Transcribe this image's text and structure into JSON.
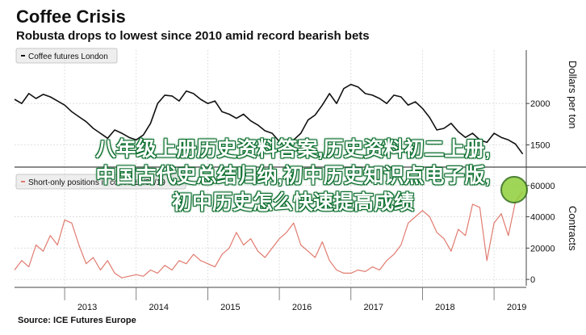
{
  "title": "Coffee Crisis",
  "subtitle": "Robusta drops to lowest since 2010 amid record bearish bets",
  "source": "Source: ICE Futures Europe",
  "overlay": {
    "line1": "八年级上册历史资料答案,历史资料初二上册,",
    "line2": "中国古代史总结归纳,初中历史知识点电子版,",
    "line3": "初中历史怎么快速提高成绩"
  },
  "colors": {
    "price_line": "#111111",
    "positions_line": "#e07b6f",
    "legend_bg": "#eeeeee",
    "overlay_text": "#ffffff",
    "overlay_outline": "#0a6d2c",
    "marker": "#8fcf3a"
  },
  "chart_data": [
    {
      "type": "line",
      "legend_label": "Coffee futures London",
      "ylabel": "Dollars per ton",
      "y_ticks": [
        1500,
        2000
      ],
      "ylim": [
        1300,
        2450
      ],
      "x_ticks": [
        "2013",
        "2014",
        "2015",
        "2016",
        "2017",
        "2018",
        "2019"
      ],
      "xlim": [
        2012.3,
        2019.45
      ],
      "series": [
        {
          "x": [
            2012.3,
            2012.4,
            2012.5,
            2012.6,
            2012.7,
            2012.8,
            2012.9,
            2013.0,
            2013.1,
            2013.2,
            2013.3,
            2013.4,
            2013.5,
            2013.6,
            2013.7,
            2013.8,
            2013.9,
            2014.0,
            2014.1,
            2014.2,
            2014.3,
            2014.4,
            2014.5,
            2014.6,
            2014.7,
            2014.8,
            2014.9,
            2015.0,
            2015.1,
            2015.2,
            2015.3,
            2015.4,
            2015.5,
            2015.6,
            2015.7,
            2015.8,
            2015.9,
            2016.0,
            2016.1,
            2016.2,
            2016.3,
            2016.4,
            2016.5,
            2016.6,
            2016.7,
            2016.8,
            2016.9,
            2017.0,
            2017.1,
            2017.2,
            2017.3,
            2017.4,
            2017.5,
            2017.6,
            2017.7,
            2017.8,
            2017.9,
            2018.0,
            2018.1,
            2018.2,
            2018.3,
            2018.4,
            2018.5,
            2018.6,
            2018.7,
            2018.8,
            2018.9,
            2019.0,
            2019.1,
            2019.2,
            2019.3,
            2019.4
          ],
          "values": [
            2050,
            2000,
            2120,
            2060,
            2110,
            2080,
            2030,
            1980,
            1900,
            1840,
            1780,
            1700,
            1640,
            1580,
            1680,
            1640,
            1590,
            1560,
            1620,
            1760,
            2000,
            2100,
            2090,
            2030,
            2150,
            2120,
            2050,
            2000,
            2030,
            1900,
            1870,
            1820,
            1870,
            1790,
            1740,
            1670,
            1640,
            1540,
            1530,
            1560,
            1640,
            1800,
            1860,
            1980,
            2120,
            2000,
            2180,
            2230,
            2200,
            2120,
            2100,
            2060,
            2000,
            2100,
            2080,
            1980,
            2020,
            1940,
            1830,
            1680,
            1700,
            1760,
            1660,
            1590,
            1640,
            1560,
            1530,
            1640,
            1590,
            1560,
            1510,
            1390
          ]
        }
      ]
    },
    {
      "type": "line",
      "legend_label": "Short-only positions in coffee 10/31/19",
      "ylabel": "Contracts",
      "y_ticks": [
        0,
        20000,
        40000,
        60000
      ],
      "ylim": [
        -2000,
        64000
      ],
      "x_ticks": [
        "2013",
        "2014",
        "2015",
        "2016",
        "2017",
        "2018",
        "2019"
      ],
      "xlim": [
        2012.3,
        2019.45
      ],
      "series": [
        {
          "x": [
            2012.3,
            2012.4,
            2012.5,
            2012.6,
            2012.7,
            2012.8,
            2012.9,
            2013.0,
            2013.1,
            2013.2,
            2013.3,
            2013.4,
            2013.5,
            2013.6,
            2013.7,
            2013.8,
            2013.9,
            2014.0,
            2014.1,
            2014.2,
            2014.3,
            2014.4,
            2014.5,
            2014.6,
            2014.7,
            2014.8,
            2014.9,
            2015.0,
            2015.1,
            2015.2,
            2015.3,
            2015.4,
            2015.5,
            2015.6,
            2015.7,
            2015.8,
            2015.9,
            2016.0,
            2016.1,
            2016.2,
            2016.3,
            2016.4,
            2016.5,
            2016.6,
            2016.7,
            2016.8,
            2016.9,
            2017.0,
            2017.1,
            2017.2,
            2017.3,
            2017.4,
            2017.5,
            2017.6,
            2017.7,
            2017.8,
            2017.9,
            2018.0,
            2018.1,
            2018.2,
            2018.3,
            2018.4,
            2018.5,
            2018.6,
            2018.7,
            2018.8,
            2018.9,
            2019.0,
            2019.1,
            2019.2,
            2019.3,
            2019.4
          ],
          "values": [
            6000,
            12000,
            8000,
            22000,
            18000,
            28000,
            22000,
            38000,
            36000,
            22000,
            10000,
            14000,
            6000,
            12000,
            4000,
            1000,
            2000,
            3000,
            2000,
            6000,
            4000,
            9000,
            6000,
            12000,
            10000,
            16000,
            12000,
            10000,
            8000,
            16000,
            20000,
            30000,
            22000,
            26000,
            18000,
            14000,
            20000,
            26000,
            30000,
            36000,
            22000,
            18000,
            14000,
            24000,
            12000,
            6000,
            4000,
            4000,
            6000,
            5000,
            8000,
            6000,
            12000,
            16000,
            22000,
            36000,
            40000,
            44000,
            40000,
            30000,
            26000,
            18000,
            32000,
            28000,
            48000,
            46000,
            12000,
            36000,
            42000,
            28000,
            50000,
            56000
          ]
        }
      ]
    }
  ]
}
